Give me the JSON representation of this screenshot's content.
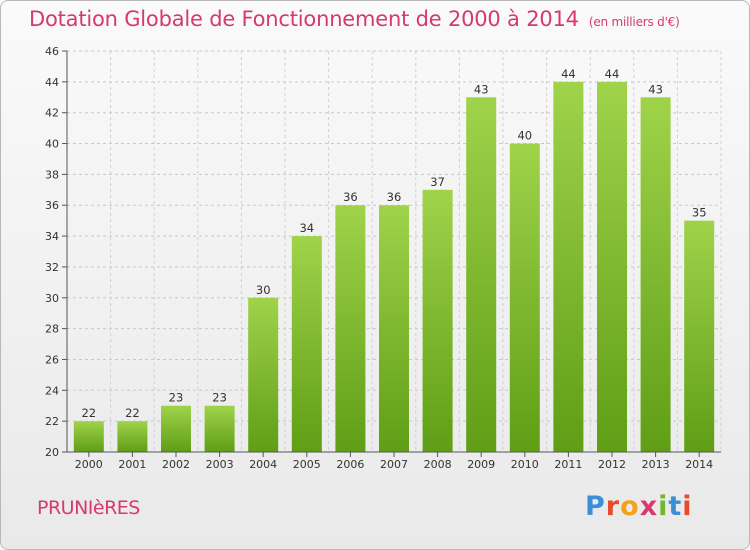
{
  "header": {
    "title": "Dotation Globale de Fonctionnement de 2000 à 2014",
    "unit": "(en milliers d'€)"
  },
  "footer": {
    "commune": "PRUNIèRES",
    "logo": [
      "P",
      "r",
      "o",
      "x",
      "i",
      "t",
      "i"
    ]
  },
  "colors": {
    "title": "#d63a6b",
    "bar_top": "#9fd34a",
    "bar_bottom": "#5f9e16"
  },
  "chart_data": {
    "type": "bar",
    "title": "Dotation Globale de Fonctionnement de 2000 à 2014",
    "subtitle": "(en milliers d'€)",
    "categories": [
      "2000",
      "2001",
      "2002",
      "2003",
      "2004",
      "2005",
      "2006",
      "2007",
      "2008",
      "2009",
      "2010",
      "2011",
      "2012",
      "2013",
      "2014"
    ],
    "values": [
      22,
      22,
      23,
      23,
      30,
      34,
      36,
      36,
      37,
      43,
      40,
      44,
      44,
      43,
      35
    ],
    "ylim": [
      20,
      46
    ],
    "yticks": [
      20,
      22,
      24,
      26,
      28,
      30,
      32,
      34,
      36,
      38,
      40,
      42,
      44,
      46
    ],
    "grid": true,
    "data_labels": true
  }
}
